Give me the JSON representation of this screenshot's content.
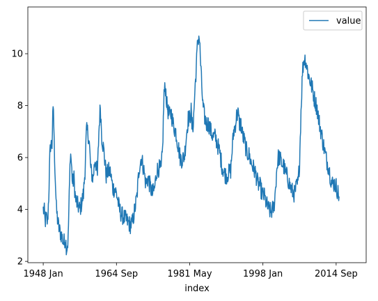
{
  "chart_data": {
    "type": "line",
    "title": "",
    "xlabel": "index",
    "ylabel": "",
    "x_ticks": [
      "1948 Jan",
      "1964 Sep",
      "1981 May",
      "1998 Jan",
      "2014 Sep"
    ],
    "x_tick_months": [
      0,
      200,
      400,
      600,
      800
    ],
    "y_ticks": [
      2,
      4,
      6,
      8,
      10
    ],
    "ylim": [
      1.95,
      11.8
    ],
    "xlim": [
      -42,
      882
    ],
    "legend": {
      "position": "top-right",
      "entries": [
        "value"
      ]
    },
    "grid": false,
    "color": "#1f77b4",
    "series": [
      {
        "name": "value",
        "start": "1948 Jan",
        "frequency": "monthly",
        "anchors": [
          [
            0,
            4.0
          ],
          [
            3,
            3.9
          ],
          [
            5,
            3.5
          ],
          [
            8,
            3.7
          ],
          [
            12,
            3.5
          ],
          [
            15,
            4.5
          ],
          [
            18,
            6.0
          ],
          [
            20,
            6.5
          ],
          [
            24,
            6.5
          ],
          [
            26,
            7.5
          ],
          [
            28,
            7.9
          ],
          [
            30,
            6.5
          ],
          [
            33,
            5.2
          ],
          [
            36,
            4.0
          ],
          [
            40,
            3.5
          ],
          [
            44,
            3.2
          ],
          [
            50,
            3.0
          ],
          [
            56,
            2.7
          ],
          [
            60,
            2.9
          ],
          [
            64,
            2.5
          ],
          [
            68,
            2.8
          ],
          [
            70,
            4.0
          ],
          [
            72,
            5.0
          ],
          [
            74,
            6.2
          ],
          [
            76,
            6.0
          ],
          [
            80,
            5.0
          ],
          [
            84,
            5.2
          ],
          [
            88,
            4.4
          ],
          [
            93,
            4.2
          ],
          [
            100,
            4.0
          ],
          [
            104,
            4.2
          ],
          [
            110,
            4.6
          ],
          [
            114,
            5.5
          ],
          [
            118,
            7.0
          ],
          [
            122,
            7.0
          ],
          [
            126,
            6.5
          ],
          [
            130,
            5.5
          ],
          [
            136,
            5.2
          ],
          [
            142,
            6.0
          ],
          [
            148,
            5.3
          ],
          [
            152,
            7.0
          ],
          [
            156,
            8.0
          ],
          [
            160,
            6.8
          ],
          [
            166,
            6.2
          ],
          [
            172,
            5.3
          ],
          [
            178,
            5.5
          ],
          [
            184,
            5.4
          ],
          [
            190,
            4.8
          ],
          [
            196,
            4.8
          ],
          [
            202,
            4.5
          ],
          [
            208,
            4.0
          ],
          [
            214,
            3.8
          ],
          [
            220,
            3.7
          ],
          [
            226,
            3.6
          ],
          [
            232,
            3.5
          ],
          [
            238,
            3.4
          ],
          [
            244,
            3.5
          ],
          [
            250,
            4.0
          ],
          [
            256,
            4.5
          ],
          [
            262,
            5.6
          ],
          [
            268,
            6.0
          ],
          [
            274,
            5.6
          ],
          [
            280,
            5.0
          ],
          [
            286,
            5.2
          ],
          [
            292,
            4.9
          ],
          [
            298,
            4.6
          ],
          [
            304,
            4.8
          ],
          [
            310,
            5.5
          ],
          [
            316,
            5.6
          ],
          [
            322,
            5.5
          ],
          [
            326,
            6.3
          ],
          [
            330,
            8.5
          ],
          [
            334,
            8.7
          ],
          [
            338,
            8.0
          ],
          [
            344,
            7.6
          ],
          [
            350,
            7.7
          ],
          [
            356,
            7.2
          ],
          [
            362,
            7.0
          ],
          [
            368,
            6.5
          ],
          [
            374,
            6.0
          ],
          [
            380,
            5.9
          ],
          [
            386,
            6.1
          ],
          [
            392,
            7.0
          ],
          [
            396,
            7.5
          ],
          [
            400,
            7.5
          ],
          [
            404,
            7.8
          ],
          [
            406,
            7.2
          ],
          [
            410,
            7.3
          ],
          [
            414,
            8.5
          ],
          [
            418,
            9.5
          ],
          [
            422,
            10.5
          ],
          [
            426,
            10.7
          ],
          [
            428,
            10.2
          ],
          [
            432,
            9.0
          ],
          [
            436,
            8.0
          ],
          [
            440,
            7.6
          ],
          [
            446,
            7.3
          ],
          [
            452,
            7.3
          ],
          [
            458,
            7.0
          ],
          [
            464,
            6.8
          ],
          [
            470,
            6.8
          ],
          [
            476,
            6.5
          ],
          [
            482,
            6.2
          ],
          [
            488,
            5.7
          ],
          [
            494,
            5.4
          ],
          [
            500,
            5.3
          ],
          [
            506,
            5.4
          ],
          [
            512,
            5.5
          ],
          [
            516,
            6.3
          ],
          [
            520,
            7.0
          ],
          [
            524,
            7.2
          ],
          [
            528,
            7.6
          ],
          [
            532,
            7.7
          ],
          [
            536,
            7.3
          ],
          [
            540,
            7.3
          ],
          [
            544,
            6.9
          ],
          [
            550,
            6.6
          ],
          [
            556,
            6.2
          ],
          [
            562,
            6.1
          ],
          [
            568,
            5.8
          ],
          [
            574,
            5.6
          ],
          [
            580,
            5.4
          ],
          [
            586,
            5.0
          ],
          [
            592,
            4.9
          ],
          [
            598,
            4.6
          ],
          [
            604,
            4.5
          ],
          [
            610,
            4.2
          ],
          [
            616,
            4.0
          ],
          [
            622,
            3.9
          ],
          [
            630,
            4.1
          ],
          [
            634,
            4.7
          ],
          [
            638,
            5.6
          ],
          [
            642,
            6.0
          ],
          [
            646,
            6.0
          ],
          [
            650,
            5.8
          ],
          [
            656,
            5.7
          ],
          [
            662,
            5.4
          ],
          [
            668,
            5.2
          ],
          [
            674,
            4.9
          ],
          [
            680,
            4.7
          ],
          [
            686,
            4.6
          ],
          [
            692,
            4.9
          ],
          [
            696,
            5.0
          ],
          [
            700,
            5.8
          ],
          [
            704,
            7.8
          ],
          [
            708,
            9.3
          ],
          [
            712,
            9.8
          ],
          [
            716,
            9.8
          ],
          [
            720,
            9.5
          ],
          [
            724,
            9.2
          ],
          [
            728,
            9.0
          ],
          [
            732,
            8.8
          ],
          [
            736,
            8.6
          ],
          [
            740,
            8.3
          ],
          [
            744,
            8.1
          ],
          [
            748,
            7.9
          ],
          [
            752,
            7.5
          ],
          [
            756,
            7.2
          ],
          [
            760,
            6.9
          ],
          [
            764,
            6.6
          ],
          [
            768,
            6.3
          ],
          [
            772,
            6.0
          ],
          [
            776,
            5.8
          ],
          [
            780,
            5.6
          ],
          [
            784,
            5.3
          ],
          [
            788,
            5.0
          ],
          [
            792,
            5.0
          ],
          [
            796,
            5.0
          ],
          [
            800,
            4.9
          ],
          [
            804,
            4.7
          ],
          [
            808,
            4.5
          ]
        ]
      }
    ]
  }
}
